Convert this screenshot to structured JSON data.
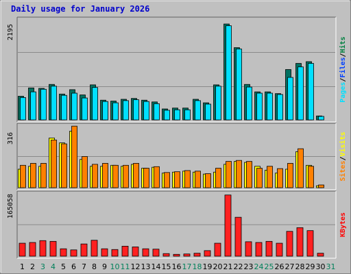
{
  "chart_title": "Daily usage for January 2026",
  "chart_data": [
    {
      "type": "bar",
      "panel": "top",
      "ymax_label": "2195",
      "ylim": [
        0,
        2300
      ],
      "legend": [
        {
          "label": "Hits",
          "color": "#008040"
        },
        {
          "label": "/",
          "color": "#000000"
        },
        {
          "label": "Files",
          "color": "#0040ff"
        },
        {
          "label": "/",
          "color": "#000000"
        },
        {
          "label": "Pages",
          "color": "#00e0ff"
        }
      ],
      "series": [
        {
          "name": "Hits",
          "color": "#007060",
          "values": [
            540,
            730,
            720,
            810,
            590,
            690,
            570,
            800,
            450,
            430,
            470,
            490,
            450,
            410,
            250,
            270,
            270,
            470,
            390,
            800,
            2190,
            1650,
            810,
            640,
            640,
            600,
            1150,
            1290,
            1330,
            90,
            0
          ]
        },
        {
          "name": "Files",
          "color": "#00e0ff",
          "values": [
            510,
            640,
            700,
            770,
            560,
            610,
            500,
            740,
            420,
            390,
            440,
            460,
            420,
            370,
            220,
            230,
            230,
            440,
            360,
            770,
            2150,
            1620,
            750,
            610,
            610,
            580,
            970,
            1210,
            1290,
            80,
            0
          ]
        }
      ]
    },
    {
      "type": "bar",
      "panel": "middle",
      "ymax_label": "316",
      "ylim": [
        0,
        320
      ],
      "legend": [
        {
          "label": "Visits",
          "color": "#ffff00"
        },
        {
          "label": "/",
          "color": "#000000"
        },
        {
          "label": "Sites",
          "color": "#ff8000"
        }
      ],
      "series": [
        {
          "name": "Visits",
          "color": "#ffff00",
          "values": [
            95,
            110,
            110,
            255,
            230,
            290,
            145,
            110,
            110,
            115,
            110,
            120,
            100,
            105,
            75,
            80,
            85,
            80,
            70,
            80,
            120,
            135,
            130,
            110,
            90,
            75,
            95,
            185,
            115,
            10,
            0
          ]
        },
        {
          "name": "Sites",
          "color": "#ff8000",
          "values": [
            115,
            125,
            125,
            245,
            225,
            316,
            160,
            120,
            125,
            115,
            115,
            125,
            100,
            108,
            78,
            82,
            88,
            85,
            72,
            100,
            135,
            140,
            135,
            100,
            110,
            98,
            125,
            200,
            110,
            14,
            0
          ]
        }
      ]
    },
    {
      "type": "bar",
      "panel": "bottom",
      "ymax_label": "165058",
      "ylim": [
        0,
        170000
      ],
      "legend": [
        {
          "label": "KBytes",
          "color": "#ff0000"
        }
      ],
      "series": [
        {
          "name": "KBytes",
          "color": "#ff2020",
          "values": [
            35000,
            37000,
            42000,
            40000,
            20000,
            17000,
            33000,
            43000,
            20000,
            18000,
            27000,
            25000,
            20000,
            19000,
            7000,
            5000,
            6000,
            8000,
            15000,
            35000,
            165058,
            105000,
            39000,
            37000,
            40000,
            35000,
            67000,
            77000,
            69000,
            8000,
            0
          ]
        }
      ]
    }
  ],
  "days": [
    "1",
    "2",
    "3",
    "4",
    "5",
    "6",
    "7",
    "8",
    "9",
    "10",
    "11",
    "12",
    "13",
    "14",
    "15",
    "16",
    "17",
    "18",
    "19",
    "20",
    "21",
    "22",
    "23",
    "24",
    "25",
    "26",
    "27",
    "28",
    "29",
    "30",
    "31"
  ],
  "weekend_days": [
    "3",
    "4",
    "10",
    "11",
    "17",
    "18",
    "24",
    "25",
    "31"
  ],
  "day_color": "#000000",
  "weekend_color": "#00805a"
}
